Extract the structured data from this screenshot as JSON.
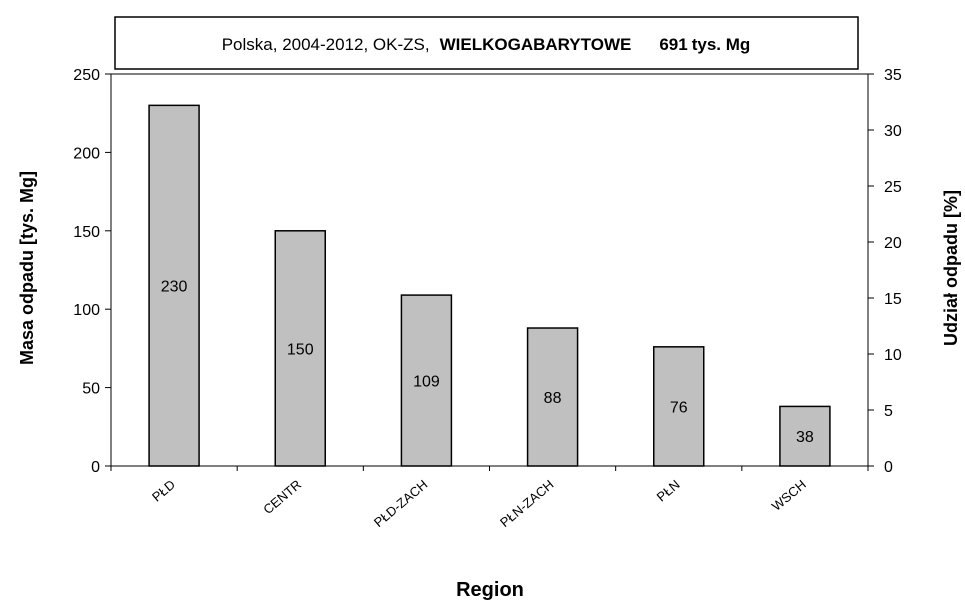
{
  "header": {
    "prefix": "Polska, 2004-2012, OK-ZS,",
    "category": "WIELKOGABARYTOWE",
    "total": "691",
    "total_unit": "tys. Mg"
  },
  "chart_data": {
    "type": "bar",
    "categories": [
      "PŁD",
      "CENTR",
      "PŁD-ZACH",
      "PŁN-ZACH",
      "PŁN",
      "WSCH"
    ],
    "series": [
      {
        "values": [
          230,
          150,
          109,
          88,
          76,
          38
        ]
      }
    ],
    "data_labels": [
      "230",
      "150",
      "109",
      "88",
      "76",
      "38"
    ],
    "xlabel": "Region",
    "ylabel": "Masa odpadu  [tys. Mg]",
    "y2label": "Udział odpadu  [%]",
    "ylim": [
      0,
      250
    ],
    "y_ticks": [
      0,
      50,
      100,
      150,
      200,
      250
    ],
    "y2lim": [
      0,
      35
    ],
    "y2_ticks": [
      0,
      5,
      10,
      15,
      20,
      25,
      30,
      35
    ],
    "grid": false,
    "legend": "none",
    "colors": {
      "bar_fill": "#c0c0c0",
      "bar_stroke": "#000000"
    }
  }
}
